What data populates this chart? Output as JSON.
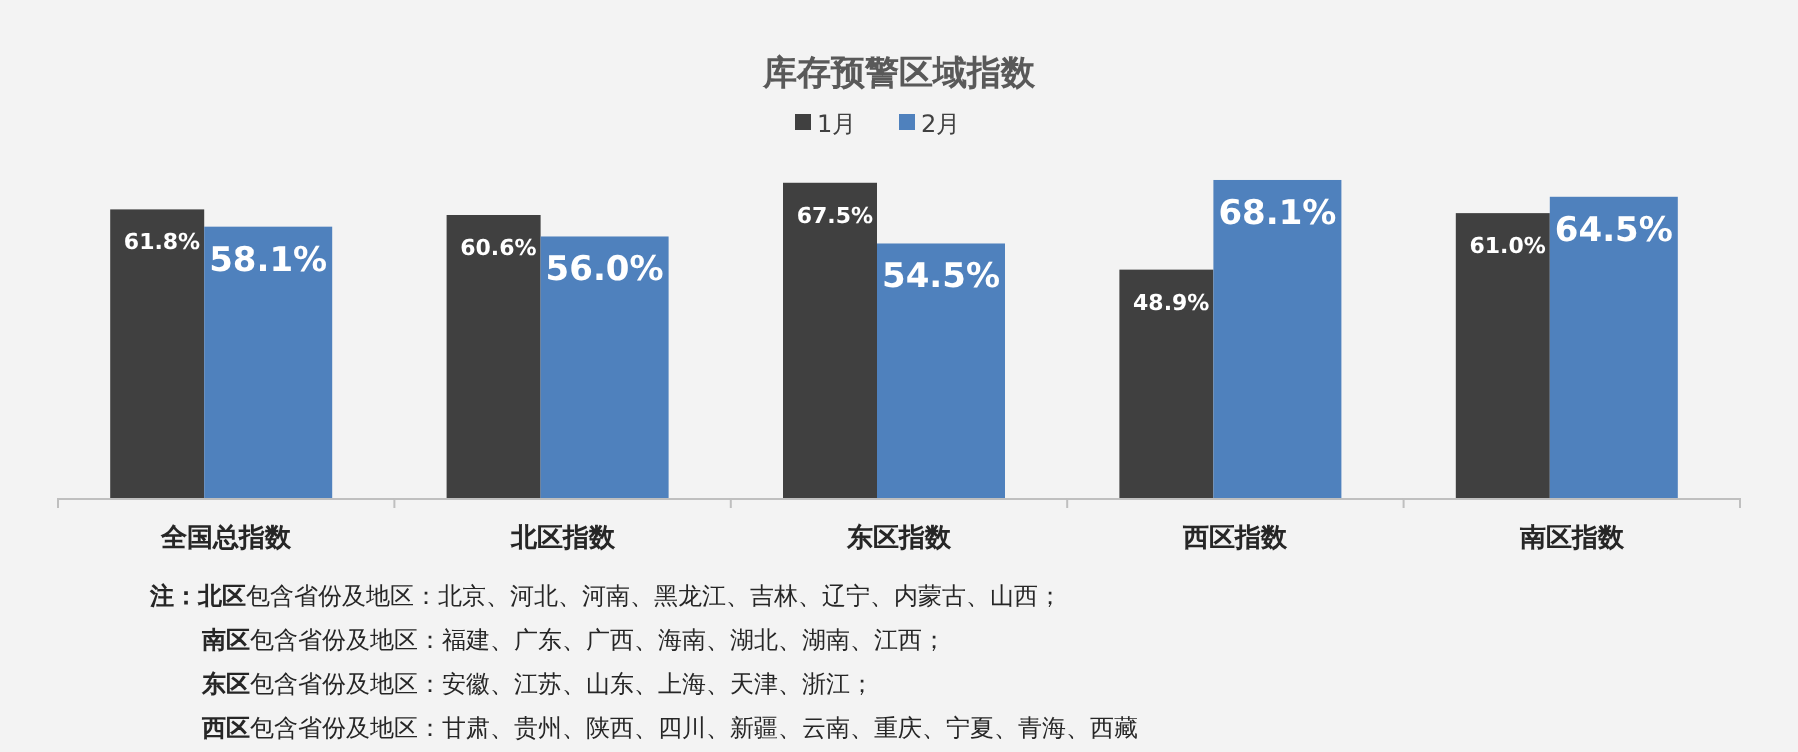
{
  "chart_data": {
    "type": "bar",
    "title": "库存预警区域指数",
    "categories": [
      "全国总指数",
      "北区指数",
      "东区指数",
      "西区指数",
      "南区指数"
    ],
    "series": [
      {
        "name": "1月",
        "color": "#404040",
        "values": [
          61.8,
          60.6,
          67.5,
          48.9,
          61.0
        ],
        "value_labels": [
          "61.8%",
          "60.6%",
          "67.5%",
          "48.9%",
          "61.0%"
        ]
      },
      {
        "name": "2月",
        "color": "#4f81bd",
        "values": [
          58.1,
          56.0,
          54.5,
          68.1,
          64.5
        ],
        "value_labels": [
          "58.1%",
          "56.0%",
          "54.5%",
          "68.1%",
          "64.5%"
        ]
      }
    ],
    "relative": false,
    "legend": "top",
    "annotations": [
      "**注：北区**包含省份及地区：北京、河北、河南、黑龙江、吉林、辽宁、内蒙古、山西；",
      "**南区**包含省份及地区：福建、广东、广西、海南、湖北、湖南、江西；",
      "**东区**包含省份及地区：安徽、江苏、山东、上海、天津、浙江；",
      "**西区**包含省份及地区：甘肃、贵州、陕西、四川、新疆、云南、重庆、宁夏、青海、西藏"
    ]
  }
}
